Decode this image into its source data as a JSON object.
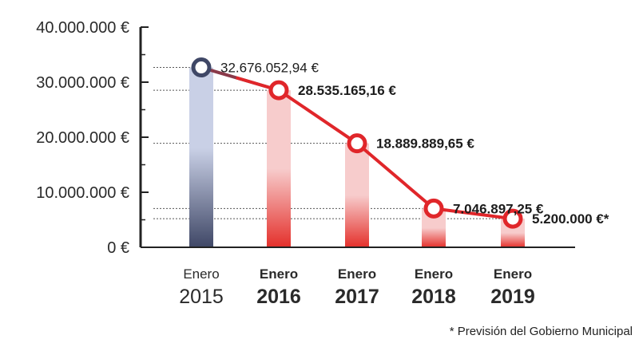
{
  "chart_data": {
    "type": "bar",
    "categories": [
      {
        "month": "Enero",
        "year": "2015"
      },
      {
        "month": "Enero",
        "year": "2016"
      },
      {
        "month": "Enero",
        "year": "2017"
      },
      {
        "month": "Enero",
        "year": "2018"
      },
      {
        "month": "Enero",
        "year": "2019"
      }
    ],
    "values": [
      32676052.94,
      28535165.16,
      18889889.65,
      7046897.25,
      5200000
    ],
    "data_labels": [
      "32.676.052,94 €",
      "28.535.165,16 €",
      "18.889.889,65 €",
      "7.046.897,25 €",
      "5.200.000 €*"
    ],
    "ylim": [
      0,
      40000000
    ],
    "y_ticks": [
      {
        "value": 40000000,
        "label": "40.000.000 €"
      },
      {
        "value": 30000000,
        "label": "30.000.000 €"
      },
      {
        "value": 20000000,
        "label": "20.000.000 €"
      },
      {
        "value": 10000000,
        "label": "10.000.000 €"
      },
      {
        "value": 0,
        "label": "0 €"
      }
    ],
    "title": "",
    "xlabel": "",
    "ylabel": "",
    "grid": false,
    "line_overlay": true,
    "footnote": "* Previsión del Gobierno Municipal",
    "colors": {
      "first_bar_top": "#c9d0e6",
      "first_bar_bottom": "#3f4766",
      "bar_top": "#f7cccc",
      "bar_bottom": "#e4302b",
      "line": "#e0262a",
      "first_marker": "#3f4766",
      "axis": "#222222",
      "leader": "#555555"
    }
  }
}
